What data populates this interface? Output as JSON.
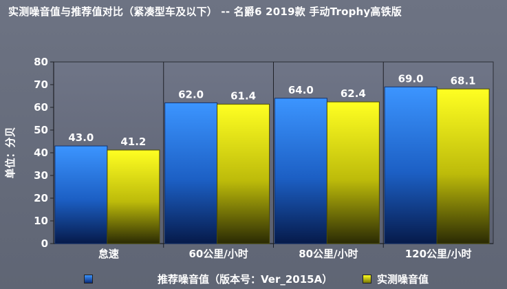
{
  "chart_data": {
    "type": "bar",
    "title": "实测噪音值与推荐值对比（紧凑型车及以下） -- 名爵6 2019款 手动Trophy高铁版",
    "ylabel": "单位：分贝",
    "xlabel": "",
    "ylim": [
      0,
      80
    ],
    "yticks": [
      0,
      10,
      20,
      30,
      40,
      50,
      60,
      70,
      80
    ],
    "grid": false,
    "legend_position": "bottom",
    "categories": [
      "怠速",
      "60公里/小时",
      "80公里/小时",
      "120公里/小时"
    ],
    "series": [
      {
        "name": "推荐噪音值（版本号：Ver_2015A）",
        "color": "#2f86f0",
        "values": [
          43.0,
          62.0,
          64.0,
          69.0
        ],
        "labels": [
          "43.0",
          "62.0",
          "64.0",
          "69.0"
        ]
      },
      {
        "name": "实测噪音值",
        "color": "#f4f000",
        "values": [
          41.2,
          61.4,
          62.4,
          68.1
        ],
        "labels": [
          "41.2",
          "61.4",
          "62.4",
          "68.1"
        ]
      }
    ]
  }
}
